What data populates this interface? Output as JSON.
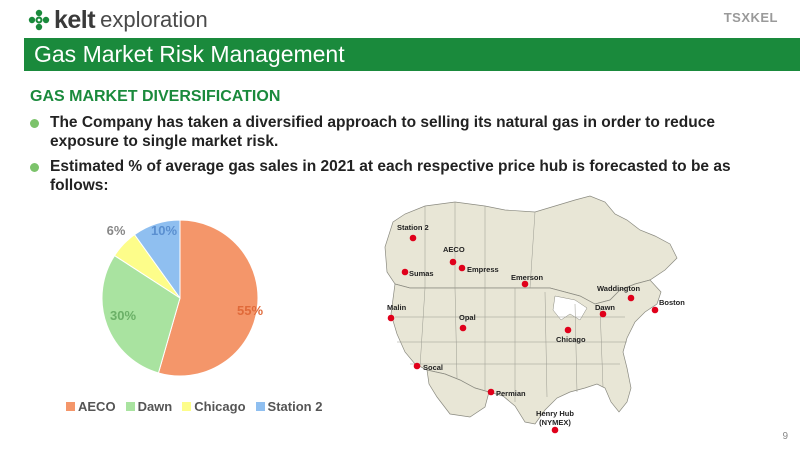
{
  "header": {
    "logo_word": "kelt",
    "logo_word2": "exploration",
    "tsx_logo": "TSXKEL",
    "title": "Gas Market Risk Management"
  },
  "content": {
    "section_heading": "GAS MARKET DIVERSIFICATION",
    "bullets": [
      "The Company has taken a diversified approach to selling its natural gas in order to reduce exposure to single market risk.",
      "Estimated % of average gas sales in 2021 at each respective price hub is forecasted to be as follows:"
    ]
  },
  "chart_data": {
    "type": "pie",
    "categories": [
      "AECO",
      "Dawn",
      "Chicago",
      "Station 2"
    ],
    "values": [
      55,
      30,
      6,
      10
    ],
    "labels": [
      "55%",
      "30%",
      "6%",
      "10%"
    ],
    "colors": [
      "#f4966a",
      "#a9e3a0",
      "#fdfd8a",
      "#8fbff0"
    ],
    "legend_position": "bottom"
  },
  "map": {
    "hubs": [
      {
        "name": "Station 2"
      },
      {
        "name": "AECO"
      },
      {
        "name": "Sumas"
      },
      {
        "name": "Empress"
      },
      {
        "name": "Emerson"
      },
      {
        "name": "Malin"
      },
      {
        "name": "Opal"
      },
      {
        "name": "Waddington"
      },
      {
        "name": "Dawn"
      },
      {
        "name": "Boston"
      },
      {
        "name": "Chicago"
      },
      {
        "name": "Socal"
      },
      {
        "name": "Permian"
      },
      {
        "name": "Henry Hub"
      }
    ],
    "henry_hub_sub": "(NYMEX)",
    "land_color": "#e8e6d6",
    "water_color": "#ffffff",
    "marker_color": "#e0001b"
  },
  "footer": {
    "page_number": "9"
  },
  "theme": {
    "brand_green": "#1a8a3c",
    "bullet_green": "#7cc36b"
  }
}
